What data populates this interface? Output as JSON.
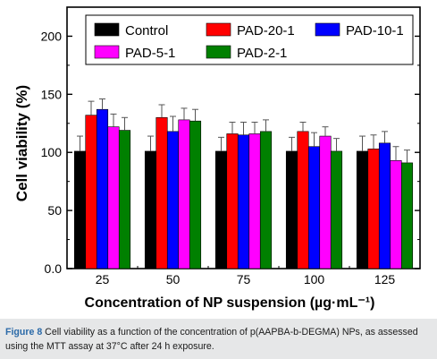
{
  "chart_data": {
    "type": "bar",
    "xlabel": "Concentration of NP suspension (µg·mL⁻¹)",
    "ylabel": "Cell viability (%)",
    "categories": [
      "25",
      "50",
      "75",
      "100",
      "125"
    ],
    "ylim": [
      0,
      225
    ],
    "yticks": [
      "0.0",
      "50",
      "100",
      "150",
      "200"
    ],
    "ytick_values": [
      0,
      50,
      100,
      150,
      200
    ],
    "legend_position": "top",
    "series": [
      {
        "name": "Control",
        "color": "#000000",
        "values": [
          101,
          101,
          101,
          101,
          101
        ],
        "errors": [
          13,
          13,
          12,
          12,
          13
        ]
      },
      {
        "name": "PAD-20-1",
        "color": "#ff0000",
        "values": [
          132,
          130,
          116,
          118,
          103
        ],
        "errors": [
          12,
          11,
          10,
          8,
          12
        ]
      },
      {
        "name": "PAD-10-1",
        "color": "#0000ff",
        "values": [
          137,
          118,
          115,
          105,
          108
        ],
        "errors": [
          9,
          13,
          11,
          12,
          10
        ]
      },
      {
        "name": "PAD-5-1",
        "color": "#ff00ff",
        "values": [
          122,
          128,
          116,
          114,
          93
        ],
        "errors": [
          11,
          10,
          10,
          8,
          12
        ]
      },
      {
        "name": "PAD-2-1",
        "color": "#008000",
        "values": [
          119,
          127,
          118,
          101,
          91
        ],
        "errors": [
          11,
          10,
          10,
          11,
          11
        ]
      }
    ]
  },
  "caption": {
    "label": "Figure 8",
    "text": " Cell viability as a function of the concentration of p(AAPBA-b-DEGMA) NPs, as assessed using the MTT assay at 37°C after 24 h exposure."
  }
}
